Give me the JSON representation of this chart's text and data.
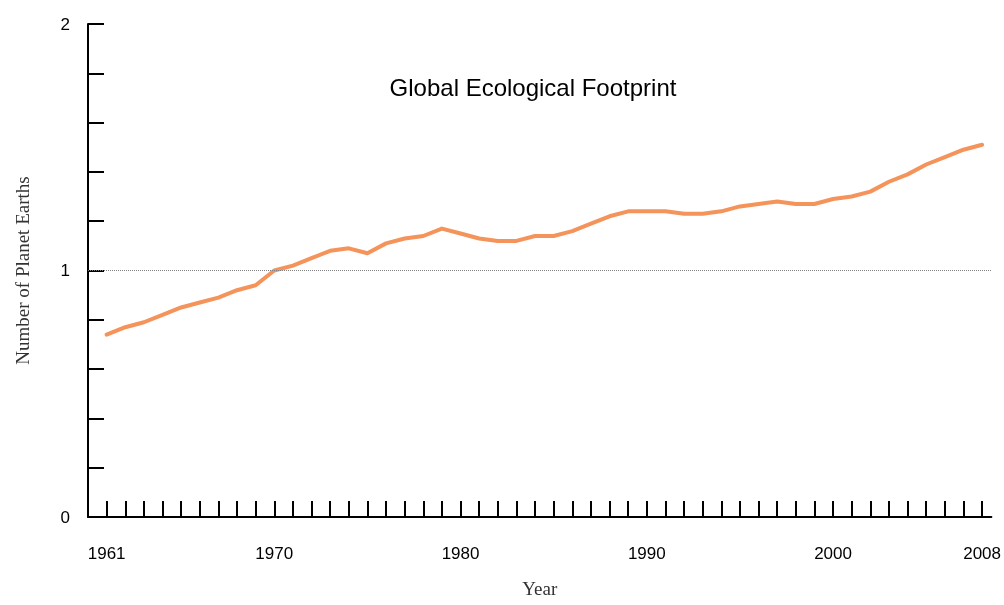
{
  "chart_data": {
    "type": "line",
    "title": "Global Ecological Footprint",
    "xlabel": "Year",
    "ylabel": "Number of Planet Earths",
    "x": [
      1961,
      1962,
      1963,
      1964,
      1965,
      1966,
      1967,
      1968,
      1969,
      1970,
      1971,
      1972,
      1973,
      1974,
      1975,
      1976,
      1977,
      1978,
      1979,
      1980,
      1981,
      1982,
      1983,
      1984,
      1985,
      1986,
      1987,
      1988,
      1989,
      1990,
      1991,
      1992,
      1993,
      1994,
      1995,
      1996,
      1997,
      1998,
      1999,
      2000,
      2001,
      2002,
      2003,
      2004,
      2005,
      2006,
      2007,
      2008
    ],
    "series": [
      {
        "color": "#f4935a",
        "values": [
          0.74,
          0.77,
          0.79,
          0.82,
          0.85,
          0.87,
          0.89,
          0.92,
          0.94,
          1.0,
          1.02,
          1.05,
          1.08,
          1.09,
          1.07,
          1.11,
          1.13,
          1.14,
          1.17,
          1.15,
          1.13,
          1.12,
          1.12,
          1.14,
          1.14,
          1.16,
          1.19,
          1.22,
          1.24,
          1.24,
          1.24,
          1.23,
          1.23,
          1.24,
          1.26,
          1.27,
          1.28,
          1.27,
          1.27,
          1.29,
          1.3,
          1.32,
          1.36,
          1.39,
          1.43,
          1.46,
          1.49,
          1.51
        ]
      }
    ],
    "xlim": [
      1960,
      2008.5
    ],
    "xticks": [
      1961,
      {
        "value": 1962,
        "label": null
      },
      {
        "value": 1963,
        "label": null
      },
      {
        "value": 1964,
        "label": null
      },
      {
        "value": 1965,
        "label": null
      },
      {
        "value": 1966,
        "label": null
      },
      {
        "value": 1967,
        "label": null
      },
      {
        "value": 1968,
        "label": null
      },
      {
        "value": 1969,
        "label": null
      },
      1970,
      {
        "value": 1971,
        "label": null
      },
      {
        "value": 1972,
        "label": null
      },
      {
        "value": 1973,
        "label": null
      },
      {
        "value": 1974,
        "label": null
      },
      {
        "value": 1975,
        "label": null
      },
      {
        "value": 1976,
        "label": null
      },
      {
        "value": 1977,
        "label": null
      },
      {
        "value": 1978,
        "label": null
      },
      {
        "value": 1979,
        "label": null
      },
      1980,
      {
        "value": 1981,
        "label": null
      },
      {
        "value": 1982,
        "label": null
      },
      {
        "value": 1983,
        "label": null
      },
      {
        "value": 1984,
        "label": null
      },
      {
        "value": 1985,
        "label": null
      },
      {
        "value": 1986,
        "label": null
      },
      {
        "value": 1987,
        "label": null
      },
      {
        "value": 1988,
        "label": null
      },
      {
        "value": 1989,
        "label": null
      },
      1990,
      {
        "value": 1991,
        "label": null
      },
      {
        "value": 1992,
        "label": null
      },
      {
        "value": 1993,
        "label": null
      },
      {
        "value": 1994,
        "label": null
      },
      {
        "value": 1995,
        "label": null
      },
      {
        "value": 1996,
        "label": null
      },
      {
        "value": 1997,
        "label": null
      },
      {
        "value": 1998,
        "label": null
      },
      {
        "value": 1999,
        "label": null
      },
      2000,
      {
        "value": 2001,
        "label": null
      },
      {
        "value": 2002,
        "label": null
      },
      {
        "value": 2003,
        "label": null
      },
      {
        "value": 2004,
        "label": null
      },
      {
        "value": 2005,
        "label": null
      },
      {
        "value": 2006,
        "label": null
      },
      {
        "value": 2007,
        "label": null
      },
      2008
    ],
    "ylim": [
      0,
      2
    ],
    "yticks": [
      0,
      {
        "value": 0.2,
        "label": null
      },
      {
        "value": 0.4,
        "label": null
      },
      {
        "value": 0.6,
        "label": null
      },
      {
        "value": 0.8,
        "label": null
      },
      1,
      {
        "value": 1.2,
        "label": null
      },
      {
        "value": 1.4,
        "label": null
      },
      {
        "value": 1.6,
        "label": null
      },
      {
        "value": 1.8,
        "label": null
      },
      2
    ],
    "ref_lines": [
      {
        "axis": "y",
        "value": 1,
        "color": "#808080",
        "line_style": "dotted"
      }
    ],
    "marker": "none",
    "line_style": "solid"
  }
}
